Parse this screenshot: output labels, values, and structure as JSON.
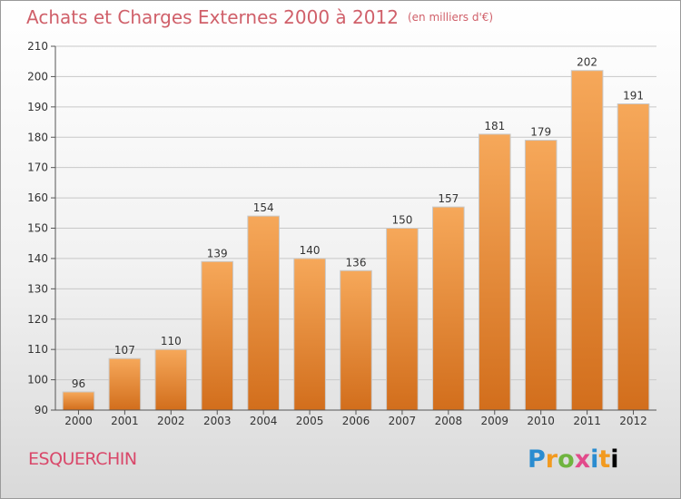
{
  "header": {
    "title": "Achats et Charges Externes 2000 à 2012",
    "unit": "(en milliers d'€)"
  },
  "footer": {
    "commune": "ESQUERCHIN",
    "logo_letters": [
      "P",
      "r",
      "o",
      "x",
      "i",
      "t",
      "i"
    ]
  },
  "colors": {
    "bar_top": "#f6a85a",
    "bar_bottom": "#d26e1c",
    "title": "#d0606a",
    "commune": "#d9486a"
  },
  "chart_data": {
    "type": "bar",
    "title": "Achats et Charges Externes 2000 à 2012",
    "categories": [
      "2000",
      "2001",
      "2002",
      "2003",
      "2004",
      "2005",
      "2006",
      "2007",
      "2008",
      "2009",
      "2010",
      "2011",
      "2012"
    ],
    "values": [
      96,
      107,
      110,
      139,
      154,
      140,
      136,
      150,
      157,
      181,
      179,
      202,
      191
    ],
    "ylim": [
      90,
      210
    ],
    "yticks": [
      90,
      100,
      110,
      120,
      130,
      140,
      150,
      160,
      170,
      180,
      190,
      200,
      210
    ],
    "grid": true,
    "xlabel": "",
    "ylabel": ""
  }
}
